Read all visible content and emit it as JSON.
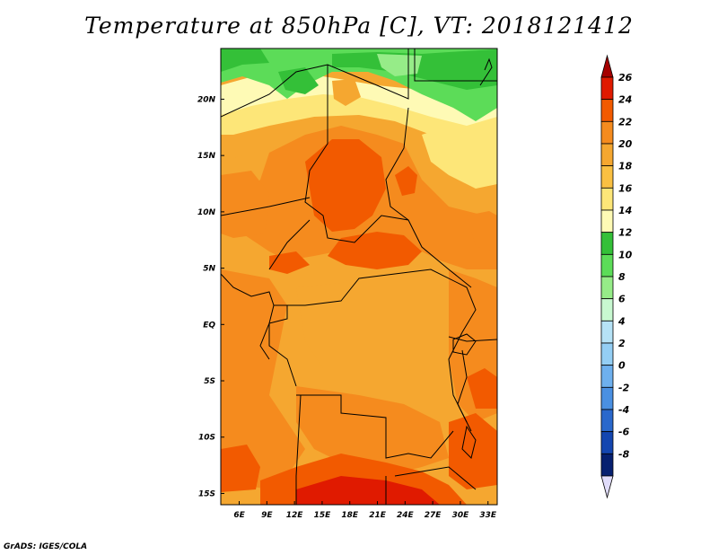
{
  "title": "Temperature at 850hPa [C], VT: 2018121412",
  "credit": "GrADS: IGES/COLA",
  "map": {
    "lon_range": [
      4,
      34
    ],
    "lat_range": [
      -16,
      24.5
    ],
    "lon_ticks": [
      {
        "value": 6,
        "label": "6E"
      },
      {
        "value": 9,
        "label": "9E"
      },
      {
        "value": 12,
        "label": "12E"
      },
      {
        "value": 15,
        "label": "15E"
      },
      {
        "value": 18,
        "label": "18E"
      },
      {
        "value": 21,
        "label": "21E"
      },
      {
        "value": 24,
        "label": "24E"
      },
      {
        "value": 27,
        "label": "27E"
      },
      {
        "value": 30,
        "label": "30E"
      },
      {
        "value": 33,
        "label": "33E"
      }
    ],
    "lat_ticks": [
      {
        "value": 20,
        "label": "20N"
      },
      {
        "value": 15,
        "label": "15N"
      },
      {
        "value": 10,
        "label": "10N"
      },
      {
        "value": 5,
        "label": "5N"
      },
      {
        "value": 0,
        "label": "EQ"
      },
      {
        "value": -5,
        "label": "5S"
      },
      {
        "value": -10,
        "label": "10S"
      },
      {
        "value": -15,
        "label": "15S"
      }
    ]
  },
  "colorbar": {
    "labels": [
      "26",
      "24",
      "22",
      "20",
      "18",
      "16",
      "14",
      "12",
      "10",
      "8",
      "6",
      "4",
      "2",
      "0",
      "-2",
      "-4",
      "-6",
      "-8"
    ],
    "colors": [
      "#a50000",
      "#e01a00",
      "#f25a00",
      "#f58b1e",
      "#f5a730",
      "#fac042",
      "#fde678",
      "#fefab5",
      "#34c038",
      "#5cdc58",
      "#96ec88",
      "#c8f8d0",
      "#b6e2f6",
      "#94cef4",
      "#6eb0ee",
      "#4a90e2",
      "#2a68cc",
      "#1446b0",
      "#062070",
      "#e0dcfa"
    ]
  },
  "colors": {
    "c10": "#5cdc58",
    "c12": "#34c038",
    "c14": "#fefab5",
    "c16": "#fde678",
    "c18": "#fac042",
    "c20": "#f5a730",
    "c22": "#f58b1e",
    "c24": "#f25a00",
    "c26": "#e01a00"
  }
}
